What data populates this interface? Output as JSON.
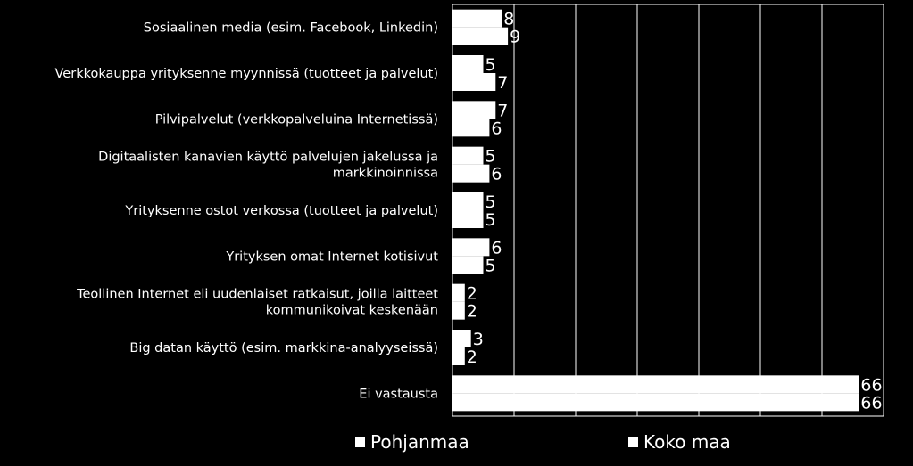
{
  "chart_data": {
    "type": "bar",
    "orientation": "horizontal",
    "categories": [
      [
        "Sosiaalinen media (esim. Facebook, Linkedin)"
      ],
      [
        "Verkkokauppa yrityksenne myynnissä (tuotteet ja palvelut)"
      ],
      [
        "Pilvipalvelut  (verkkopalveluina Internetissä)"
      ],
      [
        "Digitaalisten kanavien käyttö palvelujen jakelussa ja",
        "markkinoinnissa"
      ],
      [
        "Yrityksenne ostot verkossa (tuotteet ja palvelut)"
      ],
      [
        "Yrityksen omat Internet kotisivut"
      ],
      [
        "Teollinen Internet eli uudenlaiset ratkaisut, joilla laitteet",
        "kommunikoivat keskenään"
      ],
      [
        "Big datan käyttö (esim. markkina-analyyseissä)"
      ],
      [
        "Ei vastausta"
      ]
    ],
    "series": [
      {
        "name": "Pohjanmaa",
        "values": [
          8,
          5,
          7,
          5,
          5,
          6,
          2,
          3,
          66
        ]
      },
      {
        "name": "Koko maa",
        "values": [
          9,
          7,
          6,
          6,
          5,
          5,
          2,
          2,
          66
        ]
      }
    ],
    "xlim": [
      0,
      70
    ],
    "grid": true,
    "legend_position": "bottom",
    "colors": {
      "background": "#000000",
      "bars": "#ffffff",
      "grid": "#ffffff",
      "text": "#ffffff"
    }
  }
}
